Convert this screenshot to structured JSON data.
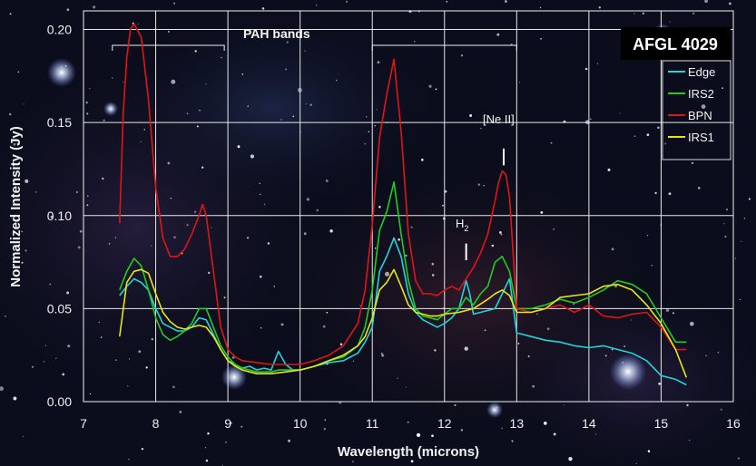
{
  "chart_data": {
    "type": "line",
    "title_box": "AFGL 4029",
    "xlabel": "Wavelength (microns)",
    "ylabel": "Normalized Intensity (Jy)",
    "xlim": [
      7,
      16
    ],
    "ylim": [
      0.0,
      0.21
    ],
    "xticks": [
      "7",
      "8",
      "9",
      "10",
      "11",
      "12",
      "13",
      "14",
      "15",
      "16"
    ],
    "yticks": [
      "0.00",
      "0.05",
      "0.10",
      "0.15",
      "0.20"
    ],
    "grid": true,
    "legend_position": "top-right",
    "annotations": {
      "pah_bands": "PAH bands",
      "neii": "[Ne II]",
      "h2_main": "H",
      "h2_sub": "2"
    },
    "pah_bracket_ranges": [
      [
        7.4,
        8.95
      ],
      [
        11.0,
        13.0
      ]
    ],
    "line_markers": [
      {
        "label": "neii",
        "x": 12.82,
        "y_low": 0.127,
        "y_high": 0.136
      },
      {
        "label": "h2",
        "x": 12.3,
        "y_low": 0.076,
        "y_high": 0.085
      }
    ],
    "series": [
      {
        "name": "Edge",
        "color": "#22d4dc",
        "x": [
          7.5,
          7.6,
          7.7,
          7.8,
          7.9,
          8.0,
          8.1,
          8.2,
          8.3,
          8.4,
          8.5,
          8.6,
          8.7,
          8.8,
          8.9,
          9.0,
          9.1,
          9.2,
          9.3,
          9.4,
          9.5,
          9.6,
          9.7,
          9.8,
          9.9,
          10.0,
          10.2,
          10.4,
          10.6,
          10.8,
          10.9,
          11.0,
          11.1,
          11.2,
          11.3,
          11.4,
          11.5,
          11.6,
          11.7,
          11.8,
          11.9,
          12.0,
          12.1,
          12.2,
          12.3,
          12.35,
          12.4,
          12.5,
          12.6,
          12.7,
          12.8,
          12.9,
          13.0,
          13.2,
          13.4,
          13.6,
          13.8,
          14.0,
          14.2,
          14.4,
          14.6,
          14.8,
          15.0,
          15.2,
          15.35
        ],
        "values": [
          0.057,
          0.062,
          0.066,
          0.064,
          0.06,
          0.05,
          0.042,
          0.04,
          0.038,
          0.038,
          0.04,
          0.045,
          0.044,
          0.036,
          0.028,
          0.022,
          0.02,
          0.018,
          0.019,
          0.017,
          0.018,
          0.017,
          0.027,
          0.02,
          0.017,
          0.017,
          0.019,
          0.021,
          0.022,
          0.026,
          0.032,
          0.04,
          0.07,
          0.078,
          0.088,
          0.078,
          0.058,
          0.048,
          0.044,
          0.042,
          0.04,
          0.042,
          0.045,
          0.05,
          0.065,
          0.058,
          0.047,
          0.048,
          0.049,
          0.05,
          0.058,
          0.066,
          0.037,
          0.035,
          0.033,
          0.032,
          0.03,
          0.029,
          0.03,
          0.028,
          0.026,
          0.022,
          0.014,
          0.012,
          0.009
        ]
      },
      {
        "name": "IRS2",
        "color": "#22cc22",
        "x": [
          7.5,
          7.6,
          7.7,
          7.8,
          7.9,
          8.0,
          8.1,
          8.2,
          8.3,
          8.4,
          8.5,
          8.6,
          8.7,
          8.8,
          8.9,
          9.0,
          9.1,
          9.2,
          9.3,
          9.4,
          9.5,
          9.6,
          9.7,
          9.8,
          9.9,
          10.0,
          10.2,
          10.4,
          10.6,
          10.8,
          10.9,
          11.0,
          11.1,
          11.2,
          11.3,
          11.4,
          11.5,
          11.6,
          11.7,
          11.8,
          11.9,
          12.0,
          12.1,
          12.2,
          12.3,
          12.4,
          12.5,
          12.6,
          12.7,
          12.8,
          12.9,
          13.0,
          13.2,
          13.4,
          13.6,
          13.8,
          14.0,
          14.2,
          14.4,
          14.6,
          14.8,
          15.0,
          15.2,
          15.35
        ],
        "values": [
          0.06,
          0.07,
          0.077,
          0.073,
          0.06,
          0.045,
          0.036,
          0.033,
          0.035,
          0.038,
          0.042,
          0.05,
          0.05,
          0.04,
          0.03,
          0.024,
          0.02,
          0.018,
          0.017,
          0.016,
          0.016,
          0.016,
          0.017,
          0.017,
          0.017,
          0.017,
          0.019,
          0.022,
          0.024,
          0.03,
          0.04,
          0.06,
          0.092,
          0.102,
          0.118,
          0.09,
          0.065,
          0.05,
          0.046,
          0.045,
          0.044,
          0.047,
          0.05,
          0.05,
          0.056,
          0.052,
          0.058,
          0.062,
          0.075,
          0.078,
          0.07,
          0.05,
          0.05,
          0.052,
          0.055,
          0.053,
          0.056,
          0.06,
          0.065,
          0.063,
          0.058,
          0.045,
          0.032,
          0.032
        ]
      },
      {
        "name": "BPN",
        "color": "#e01616",
        "x": [
          7.5,
          7.55,
          7.6,
          7.65,
          7.7,
          7.8,
          7.9,
          8.0,
          8.1,
          8.2,
          8.3,
          8.4,
          8.5,
          8.6,
          8.65,
          8.7,
          8.8,
          8.9,
          9.0,
          9.1,
          9.2,
          9.4,
          9.6,
          9.8,
          10.0,
          10.2,
          10.4,
          10.6,
          10.8,
          10.9,
          11.0,
          11.1,
          11.2,
          11.3,
          11.4,
          11.5,
          11.6,
          11.7,
          11.8,
          11.9,
          12.0,
          12.1,
          12.2,
          12.3,
          12.4,
          12.5,
          12.6,
          12.7,
          12.75,
          12.8,
          12.85,
          12.9,
          13.0,
          13.2,
          13.4,
          13.6,
          13.8,
          14.0,
          14.2,
          14.4,
          14.6,
          14.8,
          15.0,
          15.2,
          15.35
        ],
        "values": [
          0.096,
          0.155,
          0.185,
          0.2,
          0.203,
          0.196,
          0.162,
          0.115,
          0.088,
          0.078,
          0.078,
          0.082,
          0.09,
          0.1,
          0.106,
          0.1,
          0.07,
          0.04,
          0.028,
          0.024,
          0.022,
          0.021,
          0.02,
          0.02,
          0.02,
          0.022,
          0.025,
          0.03,
          0.042,
          0.06,
          0.095,
          0.142,
          0.165,
          0.184,
          0.145,
          0.09,
          0.065,
          0.058,
          0.058,
          0.057,
          0.06,
          0.062,
          0.06,
          0.066,
          0.072,
          0.08,
          0.09,
          0.108,
          0.118,
          0.124,
          0.122,
          0.11,
          0.05,
          0.048,
          0.05,
          0.052,
          0.048,
          0.052,
          0.046,
          0.045,
          0.047,
          0.048,
          0.04,
          0.028,
          0.028
        ]
      },
      {
        "name": "IRS1",
        "color": "#e6e61a",
        "x": [
          7.5,
          7.6,
          7.7,
          7.8,
          7.9,
          8.0,
          8.1,
          8.2,
          8.3,
          8.4,
          8.5,
          8.6,
          8.7,
          8.8,
          8.9,
          9.0,
          9.1,
          9.2,
          9.3,
          9.4,
          9.6,
          9.8,
          10.0,
          10.2,
          10.4,
          10.6,
          10.8,
          10.9,
          11.0,
          11.1,
          11.2,
          11.3,
          11.4,
          11.5,
          11.6,
          11.7,
          11.8,
          11.9,
          12.0,
          12.2,
          12.4,
          12.6,
          12.7,
          12.8,
          12.9,
          13.0,
          13.2,
          13.4,
          13.6,
          13.8,
          14.0,
          14.2,
          14.4,
          14.6,
          14.8,
          15.0,
          15.2,
          15.35
        ],
        "values": [
          0.035,
          0.064,
          0.07,
          0.071,
          0.069,
          0.058,
          0.048,
          0.043,
          0.04,
          0.039,
          0.04,
          0.041,
          0.04,
          0.035,
          0.028,
          0.022,
          0.019,
          0.017,
          0.016,
          0.015,
          0.015,
          0.016,
          0.017,
          0.019,
          0.022,
          0.025,
          0.03,
          0.035,
          0.045,
          0.06,
          0.064,
          0.071,
          0.062,
          0.052,
          0.048,
          0.047,
          0.046,
          0.046,
          0.047,
          0.048,
          0.05,
          0.055,
          0.058,
          0.06,
          0.057,
          0.048,
          0.048,
          0.05,
          0.056,
          0.057,
          0.058,
          0.062,
          0.063,
          0.06,
          0.052,
          0.042,
          0.028,
          0.013
        ]
      }
    ]
  }
}
